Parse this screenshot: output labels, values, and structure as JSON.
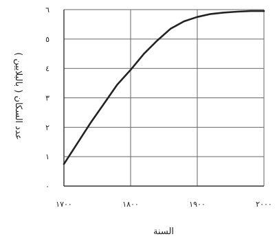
{
  "chart_data": {
    "type": "line",
    "title": "",
    "xlabel": "السنة",
    "ylabel": "عدد السكان ( بالبلايين )",
    "x_tick_labels": [
      "١٧٠٠",
      "١٨٠٠",
      "١٩٠٠",
      "٢٠٠٠"
    ],
    "y_tick_labels": [
      "٠",
      "١",
      "٢",
      "٣",
      "٤",
      "٥",
      "٦"
    ],
    "x_ticks": [
      1700,
      1800,
      1900,
      2000
    ],
    "y_ticks": [
      0,
      1,
      2,
      3,
      4,
      5,
      6
    ],
    "xlim": [
      1700,
      2000
    ],
    "ylim": [
      0,
      6
    ],
    "grid": true,
    "series": [
      {
        "x": [
          1700,
          1720,
          1740,
          1760,
          1780,
          1800,
          1820,
          1840,
          1860,
          1880,
          1900,
          1920,
          1940,
          1960,
          1980,
          2000
        ],
        "y": [
          0.75,
          1.45,
          2.15,
          2.8,
          3.45,
          3.95,
          4.5,
          4.95,
          5.35,
          5.6,
          5.75,
          5.85,
          5.9,
          5.93,
          5.95,
          5.95
        ]
      }
    ],
    "line_color": "#222222"
  }
}
